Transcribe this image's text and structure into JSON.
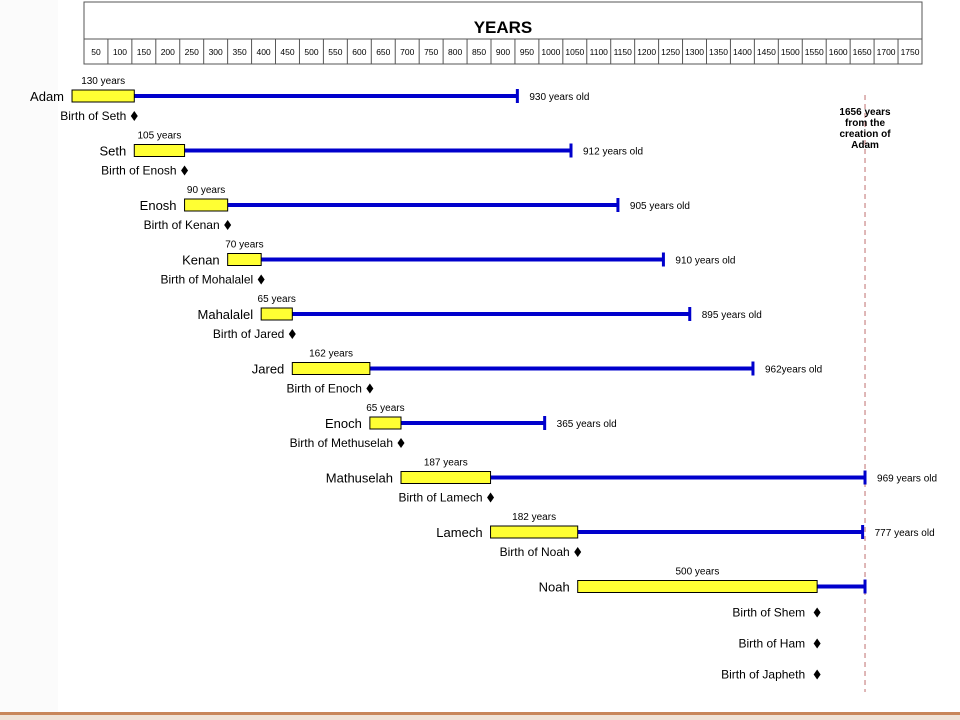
{
  "chart_data": {
    "type": "gantt",
    "title": "YEARS",
    "x_ticks": [
      "50",
      "100",
      "150",
      "200",
      "250",
      "300",
      "350",
      "400",
      "450",
      "500",
      "550",
      "600",
      "650",
      "700",
      "750",
      "800",
      "850",
      "900",
      "950",
      "1000",
      "1050",
      "1100",
      "1150",
      "1200",
      "1250",
      "1300",
      "1350",
      "1400",
      "1450",
      "1500",
      "1550",
      "1600",
      "1650",
      "1700",
      "1750"
    ],
    "xlim": [
      25,
      1775
    ],
    "colors": {
      "before_son": "#ffff33",
      "lifespan": "#0000cc",
      "reference_line": "#c07070"
    },
    "people": [
      {
        "name": "Adam",
        "start": 0,
        "son_age_label": "130 years",
        "son_age": 130,
        "son_birth_label": "Birth of Seth",
        "death_age_label": "930 years old",
        "end": 930
      },
      {
        "name": "Seth",
        "start": 130,
        "son_age_label": "105 years",
        "son_age": 105,
        "son_birth_label": "Birth of Enosh",
        "death_age_label": "912 years old",
        "end": 1042
      },
      {
        "name": "Enosh",
        "start": 235,
        "son_age_label": "90 years",
        "son_age": 90,
        "son_birth_label": "Birth of Kenan",
        "death_age_label": "905 years old",
        "end": 1140
      },
      {
        "name": "Kenan",
        "start": 325,
        "son_age_label": "70 years",
        "son_age": 70,
        "son_birth_label": "Birth of Mohalalel",
        "death_age_label": "910 years old",
        "end": 1235
      },
      {
        "name": "Mahalalel",
        "start": 395,
        "son_age_label": "65 years",
        "son_age": 65,
        "son_birth_label": "Birth of Jared",
        "death_age_label": "895 years old",
        "end": 1290
      },
      {
        "name": "Jared",
        "start": 460,
        "son_age_label": "162 years",
        "son_age": 162,
        "son_birth_label": "Birth of Enoch",
        "death_age_label": "962years old",
        "end": 1422
      },
      {
        "name": "Enoch",
        "start": 622,
        "son_age_label": "65 years",
        "son_age": 65,
        "son_birth_label": "Birth of Methuselah",
        "death_age_label": "365 years old",
        "end": 987
      },
      {
        "name": "Mathuselah",
        "start": 687,
        "son_age_label": "187 years",
        "son_age": 187,
        "son_birth_label": "Birth of Lamech",
        "death_age_label": "969 years old",
        "end": 1656
      },
      {
        "name": "Lamech",
        "start": 874,
        "son_age_label": "182 years",
        "son_age": 182,
        "son_birth_label": "Birth of Noah",
        "death_age_label": "777 years old",
        "end": 1651
      },
      {
        "name": "Noah",
        "start": 1056,
        "son_age_label": "500 years",
        "son_age": 500,
        "son_birth_labels": [
          "Birth of Shem",
          "Birth of Ham",
          "Birth of Japheth"
        ],
        "end": 1656
      }
    ],
    "reference_line": {
      "value": 1656,
      "label": [
        "1656 years",
        "from the",
        "creation of",
        "Adam"
      ]
    }
  }
}
